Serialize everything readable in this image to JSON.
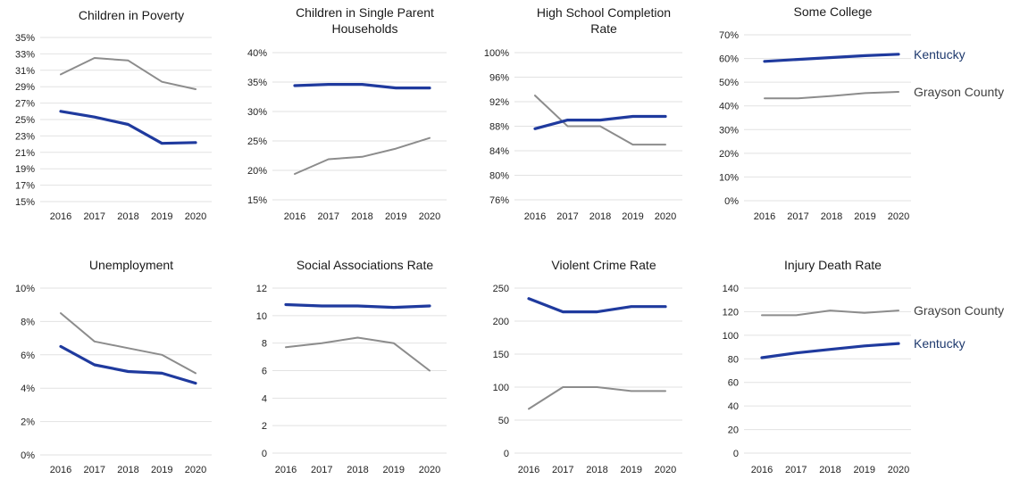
{
  "colors": {
    "kentucky": "#1f3a9e",
    "grayson": "#8c8c8c",
    "grid": "#e2e2e2"
  },
  "legend": {
    "kentucky_label": "Kentucky",
    "grayson_label": "Grayson County",
    "kentucky_text_color": "#1f3a6e",
    "grayson_text_color": "#404040"
  },
  "chart_data": [
    {
      "type": "line",
      "title": "Children in Poverty",
      "x": [
        "2016",
        "2017",
        "2018",
        "2019",
        "2020"
      ],
      "y_ticks": [
        "35%",
        "33%",
        "31%",
        "29%",
        "27%",
        "25%",
        "23%",
        "21%",
        "19%",
        "17%",
        "15%"
      ],
      "ylim": [
        15,
        35
      ],
      "unit": "%",
      "grid": true,
      "series": [
        {
          "name": "Kentucky",
          "values": [
            26.0,
            25.3,
            24.4,
            22.1,
            22.2
          ]
        },
        {
          "name": "Grayson County",
          "values": [
            30.5,
            32.5,
            32.2,
            29.6,
            28.7
          ]
        }
      ]
    },
    {
      "type": "line",
      "title": "Children in Single Parent Households",
      "x": [
        "2016",
        "2017",
        "2018",
        "2019",
        "2020"
      ],
      "y_ticks": [
        "40%",
        "35%",
        "30%",
        "25%",
        "20%",
        "15%"
      ],
      "ylim": [
        15,
        40
      ],
      "unit": "%",
      "grid": true,
      "series": [
        {
          "name": "Kentucky",
          "values": [
            34.4,
            34.6,
            34.6,
            34.0,
            34.0
          ]
        },
        {
          "name": "Grayson County",
          "values": [
            19.4,
            21.9,
            22.3,
            23.7,
            25.5
          ]
        }
      ]
    },
    {
      "type": "line",
      "title": "High School Completion Rate",
      "x": [
        "2016",
        "2017",
        "2018",
        "2019",
        "2020"
      ],
      "y_ticks": [
        "100%",
        "96%",
        "92%",
        "88%",
        "84%",
        "80%",
        "76%"
      ],
      "ylim": [
        76,
        100
      ],
      "unit": "%",
      "grid": true,
      "series": [
        {
          "name": "Kentucky",
          "values": [
            87.6,
            89.0,
            89.0,
            89.6,
            89.6
          ]
        },
        {
          "name": "Grayson County",
          "values": [
            93.0,
            88.0,
            88.0,
            85.0,
            85.0
          ]
        }
      ]
    },
    {
      "type": "line",
      "title": "Some College",
      "x": [
        "2016",
        "2017",
        "2018",
        "2019",
        "2020"
      ],
      "y_ticks": [
        "70%",
        "60%",
        "50%",
        "40%",
        "30%",
        "20%",
        "10%",
        "0%"
      ],
      "ylim": [
        0,
        70
      ],
      "unit": "%",
      "grid": true,
      "legend_labels": true,
      "series": [
        {
          "name": "Kentucky",
          "values": [
            58.8,
            59.6,
            60.4,
            61.2,
            61.8
          ]
        },
        {
          "name": "Grayson County",
          "values": [
            43.2,
            43.2,
            44.2,
            45.4,
            45.9
          ]
        }
      ]
    },
    {
      "type": "line",
      "title": "Unemployment",
      "x": [
        "2016",
        "2017",
        "2018",
        "2019",
        "2020"
      ],
      "y_ticks": [
        "10%",
        "8%",
        "6%",
        "4%",
        "2%",
        "0%"
      ],
      "ylim": [
        0,
        10
      ],
      "unit": "%",
      "grid": true,
      "series": [
        {
          "name": "Kentucky",
          "values": [
            6.5,
            5.4,
            5.0,
            4.9,
            4.3
          ]
        },
        {
          "name": "Grayson County",
          "values": [
            8.5,
            6.8,
            6.4,
            6.0,
            4.9
          ]
        }
      ]
    },
    {
      "type": "line",
      "title": "Social Associations Rate",
      "x": [
        "2016",
        "2017",
        "2018",
        "2019",
        "2020"
      ],
      "y_ticks": [
        "12",
        "10",
        "8",
        "6",
        "4",
        "2",
        "0"
      ],
      "ylim": [
        0,
        12
      ],
      "grid": true,
      "series": [
        {
          "name": "Kentucky",
          "values": [
            10.8,
            10.7,
            10.7,
            10.6,
            10.7
          ]
        },
        {
          "name": "Grayson County",
          "values": [
            7.7,
            8.0,
            8.4,
            8.0,
            6.0
          ]
        }
      ]
    },
    {
      "type": "line",
      "title": "Violent Crime Rate",
      "x": [
        "2016",
        "2017",
        "2018",
        "2019",
        "2020"
      ],
      "y_ticks": [
        "250",
        "200",
        "150",
        "100",
        "50",
        "0"
      ],
      "ylim": [
        0,
        250
      ],
      "grid": true,
      "series": [
        {
          "name": "Kentucky",
          "values": [
            234,
            214,
            214,
            222,
            222
          ]
        },
        {
          "name": "Grayson County",
          "values": [
            67,
            100,
            100,
            94,
            94
          ]
        }
      ]
    },
    {
      "type": "line",
      "title": "Injury Death Rate",
      "x": [
        "2016",
        "2017",
        "2018",
        "2019",
        "2020"
      ],
      "y_ticks": [
        "140",
        "120",
        "100",
        "80",
        "60",
        "40",
        "20",
        "0"
      ],
      "ylim": [
        0,
        140
      ],
      "grid": true,
      "legend_labels": true,
      "series": [
        {
          "name": "Kentucky",
          "values": [
            81,
            85,
            88,
            91,
            93
          ]
        },
        {
          "name": "Grayson County",
          "values": [
            117,
            117,
            121,
            119,
            121
          ]
        }
      ]
    }
  ]
}
